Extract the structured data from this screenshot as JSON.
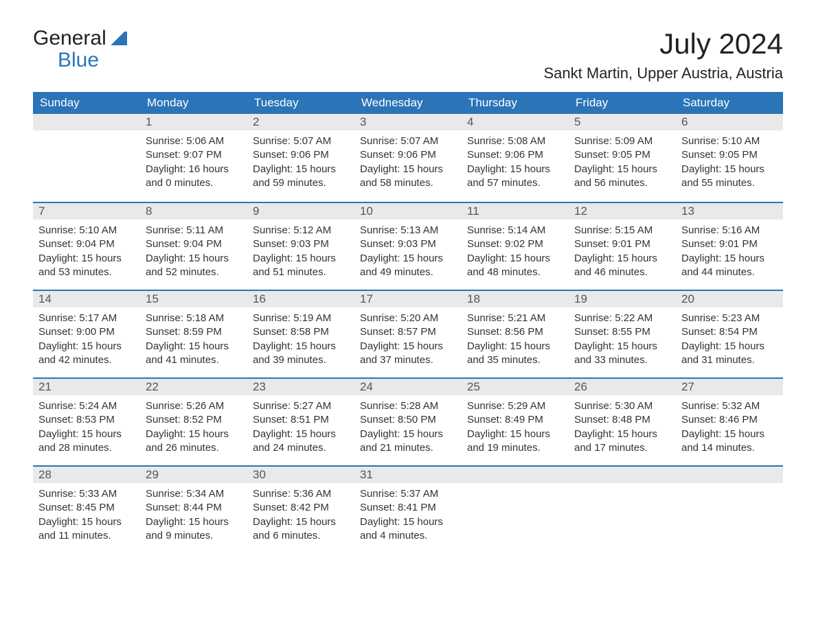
{
  "logo": {
    "line1": "General",
    "line2": "Blue"
  },
  "title": "July 2024",
  "location": "Sankt Martin, Upper Austria, Austria",
  "colors": {
    "header_bg": "#2b74b8",
    "header_text": "#ffffff",
    "daynum_bg": "#e9e9e9",
    "daynum_text": "#555555",
    "border": "#2b74b8",
    "body_text": "#333333",
    "logo_blue": "#2b74b8"
  },
  "typography": {
    "title_fontsize": 42,
    "location_fontsize": 22,
    "dow_fontsize": 17,
    "daynum_fontsize": 17,
    "data_fontsize": 15
  },
  "days_of_week": [
    "Sunday",
    "Monday",
    "Tuesday",
    "Wednesday",
    "Thursday",
    "Friday",
    "Saturday"
  ],
  "weeks": [
    [
      {
        "num": "",
        "sunrise": "",
        "sunset": "",
        "daylight": ""
      },
      {
        "num": "1",
        "sunrise": "Sunrise: 5:06 AM",
        "sunset": "Sunset: 9:07 PM",
        "daylight": "Daylight: 16 hours and 0 minutes."
      },
      {
        "num": "2",
        "sunrise": "Sunrise: 5:07 AM",
        "sunset": "Sunset: 9:06 PM",
        "daylight": "Daylight: 15 hours and 59 minutes."
      },
      {
        "num": "3",
        "sunrise": "Sunrise: 5:07 AM",
        "sunset": "Sunset: 9:06 PM",
        "daylight": "Daylight: 15 hours and 58 minutes."
      },
      {
        "num": "4",
        "sunrise": "Sunrise: 5:08 AM",
        "sunset": "Sunset: 9:06 PM",
        "daylight": "Daylight: 15 hours and 57 minutes."
      },
      {
        "num": "5",
        "sunrise": "Sunrise: 5:09 AM",
        "sunset": "Sunset: 9:05 PM",
        "daylight": "Daylight: 15 hours and 56 minutes."
      },
      {
        "num": "6",
        "sunrise": "Sunrise: 5:10 AM",
        "sunset": "Sunset: 9:05 PM",
        "daylight": "Daylight: 15 hours and 55 minutes."
      }
    ],
    [
      {
        "num": "7",
        "sunrise": "Sunrise: 5:10 AM",
        "sunset": "Sunset: 9:04 PM",
        "daylight": "Daylight: 15 hours and 53 minutes."
      },
      {
        "num": "8",
        "sunrise": "Sunrise: 5:11 AM",
        "sunset": "Sunset: 9:04 PM",
        "daylight": "Daylight: 15 hours and 52 minutes."
      },
      {
        "num": "9",
        "sunrise": "Sunrise: 5:12 AM",
        "sunset": "Sunset: 9:03 PM",
        "daylight": "Daylight: 15 hours and 51 minutes."
      },
      {
        "num": "10",
        "sunrise": "Sunrise: 5:13 AM",
        "sunset": "Sunset: 9:03 PM",
        "daylight": "Daylight: 15 hours and 49 minutes."
      },
      {
        "num": "11",
        "sunrise": "Sunrise: 5:14 AM",
        "sunset": "Sunset: 9:02 PM",
        "daylight": "Daylight: 15 hours and 48 minutes."
      },
      {
        "num": "12",
        "sunrise": "Sunrise: 5:15 AM",
        "sunset": "Sunset: 9:01 PM",
        "daylight": "Daylight: 15 hours and 46 minutes."
      },
      {
        "num": "13",
        "sunrise": "Sunrise: 5:16 AM",
        "sunset": "Sunset: 9:01 PM",
        "daylight": "Daylight: 15 hours and 44 minutes."
      }
    ],
    [
      {
        "num": "14",
        "sunrise": "Sunrise: 5:17 AM",
        "sunset": "Sunset: 9:00 PM",
        "daylight": "Daylight: 15 hours and 42 minutes."
      },
      {
        "num": "15",
        "sunrise": "Sunrise: 5:18 AM",
        "sunset": "Sunset: 8:59 PM",
        "daylight": "Daylight: 15 hours and 41 minutes."
      },
      {
        "num": "16",
        "sunrise": "Sunrise: 5:19 AM",
        "sunset": "Sunset: 8:58 PM",
        "daylight": "Daylight: 15 hours and 39 minutes."
      },
      {
        "num": "17",
        "sunrise": "Sunrise: 5:20 AM",
        "sunset": "Sunset: 8:57 PM",
        "daylight": "Daylight: 15 hours and 37 minutes."
      },
      {
        "num": "18",
        "sunrise": "Sunrise: 5:21 AM",
        "sunset": "Sunset: 8:56 PM",
        "daylight": "Daylight: 15 hours and 35 minutes."
      },
      {
        "num": "19",
        "sunrise": "Sunrise: 5:22 AM",
        "sunset": "Sunset: 8:55 PM",
        "daylight": "Daylight: 15 hours and 33 minutes."
      },
      {
        "num": "20",
        "sunrise": "Sunrise: 5:23 AM",
        "sunset": "Sunset: 8:54 PM",
        "daylight": "Daylight: 15 hours and 31 minutes."
      }
    ],
    [
      {
        "num": "21",
        "sunrise": "Sunrise: 5:24 AM",
        "sunset": "Sunset: 8:53 PM",
        "daylight": "Daylight: 15 hours and 28 minutes."
      },
      {
        "num": "22",
        "sunrise": "Sunrise: 5:26 AM",
        "sunset": "Sunset: 8:52 PM",
        "daylight": "Daylight: 15 hours and 26 minutes."
      },
      {
        "num": "23",
        "sunrise": "Sunrise: 5:27 AM",
        "sunset": "Sunset: 8:51 PM",
        "daylight": "Daylight: 15 hours and 24 minutes."
      },
      {
        "num": "24",
        "sunrise": "Sunrise: 5:28 AM",
        "sunset": "Sunset: 8:50 PM",
        "daylight": "Daylight: 15 hours and 21 minutes."
      },
      {
        "num": "25",
        "sunrise": "Sunrise: 5:29 AM",
        "sunset": "Sunset: 8:49 PM",
        "daylight": "Daylight: 15 hours and 19 minutes."
      },
      {
        "num": "26",
        "sunrise": "Sunrise: 5:30 AM",
        "sunset": "Sunset: 8:48 PM",
        "daylight": "Daylight: 15 hours and 17 minutes."
      },
      {
        "num": "27",
        "sunrise": "Sunrise: 5:32 AM",
        "sunset": "Sunset: 8:46 PM",
        "daylight": "Daylight: 15 hours and 14 minutes."
      }
    ],
    [
      {
        "num": "28",
        "sunrise": "Sunrise: 5:33 AM",
        "sunset": "Sunset: 8:45 PM",
        "daylight": "Daylight: 15 hours and 11 minutes."
      },
      {
        "num": "29",
        "sunrise": "Sunrise: 5:34 AM",
        "sunset": "Sunset: 8:44 PM",
        "daylight": "Daylight: 15 hours and 9 minutes."
      },
      {
        "num": "30",
        "sunrise": "Sunrise: 5:36 AM",
        "sunset": "Sunset: 8:42 PM",
        "daylight": "Daylight: 15 hours and 6 minutes."
      },
      {
        "num": "31",
        "sunrise": "Sunrise: 5:37 AM",
        "sunset": "Sunset: 8:41 PM",
        "daylight": "Daylight: 15 hours and 4 minutes."
      },
      {
        "num": "",
        "sunrise": "",
        "sunset": "",
        "daylight": ""
      },
      {
        "num": "",
        "sunrise": "",
        "sunset": "",
        "daylight": ""
      },
      {
        "num": "",
        "sunrise": "",
        "sunset": "",
        "daylight": ""
      }
    ]
  ]
}
